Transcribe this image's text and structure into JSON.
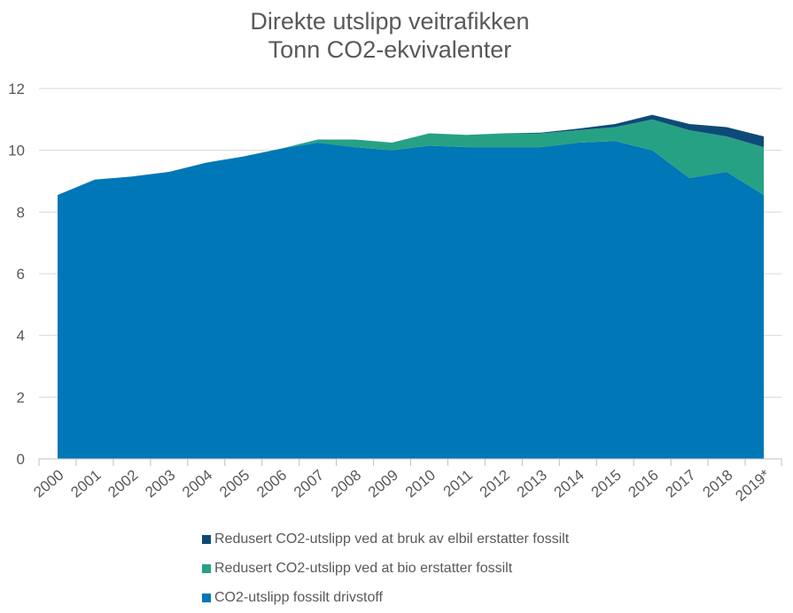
{
  "title": {
    "line1": "Direkte utslipp veitrafikken",
    "line2": "Tonn CO2-ekvivalenter"
  },
  "colors": {
    "fossil": "#0077b6",
    "bio": "#27a184",
    "elbil": "#0d4a78",
    "grid": "#d9d9d9",
    "axis": "#bfbfbf",
    "text": "#595959"
  },
  "legend": [
    {
      "label": "Redusert CO2-utslipp ved at bruk av elbil erstatter fossilt",
      "color_key": "elbil"
    },
    {
      "label": "Redusert CO2-utslipp ved at bio erstatter fossilt",
      "color_key": "bio"
    },
    {
      "label": "CO2-utslipp fossilt drivstoff",
      "color_key": "fossil"
    }
  ],
  "chart_data": {
    "type": "area",
    "stacked": true,
    "categories": [
      "2000",
      "2001",
      "2002",
      "2003",
      "2004",
      "2005",
      "2006",
      "2007",
      "2008",
      "2009",
      "2010",
      "2011",
      "2012",
      "2013",
      "2014",
      "2015",
      "2016",
      "2017",
      "2018",
      "2019*"
    ],
    "series": [
      {
        "name": "CO2-utslipp fossilt drivstoff",
        "values": [
          8.55,
          9.05,
          9.15,
          9.3,
          9.6,
          9.8,
          10.05,
          10.25,
          10.1,
          10.0,
          10.15,
          10.1,
          10.1,
          10.1,
          10.25,
          10.3,
          10.0,
          9.1,
          9.3,
          8.55
        ]
      },
      {
        "name": "Redusert CO2-utslipp ved at bio erstatter fossilt",
        "values": [
          0,
          0,
          0,
          0,
          0,
          0,
          0,
          0.1,
          0.25,
          0.25,
          0.4,
          0.4,
          0.45,
          0.45,
          0.4,
          0.45,
          1.0,
          1.55,
          1.15,
          1.55
        ]
      },
      {
        "name": "Redusert CO2-utslipp ved at bruk av elbil erstatter fossilt",
        "values": [
          0,
          0,
          0,
          0,
          0,
          0,
          0,
          0,
          0,
          0,
          0,
          0,
          0,
          0.02,
          0.05,
          0.1,
          0.15,
          0.2,
          0.3,
          0.35
        ]
      }
    ],
    "ylim": [
      0,
      12
    ],
    "yticks": [
      "0",
      "2",
      "4",
      "6",
      "8",
      "10",
      "12"
    ],
    "grid": true,
    "legend_position": "bottom"
  }
}
